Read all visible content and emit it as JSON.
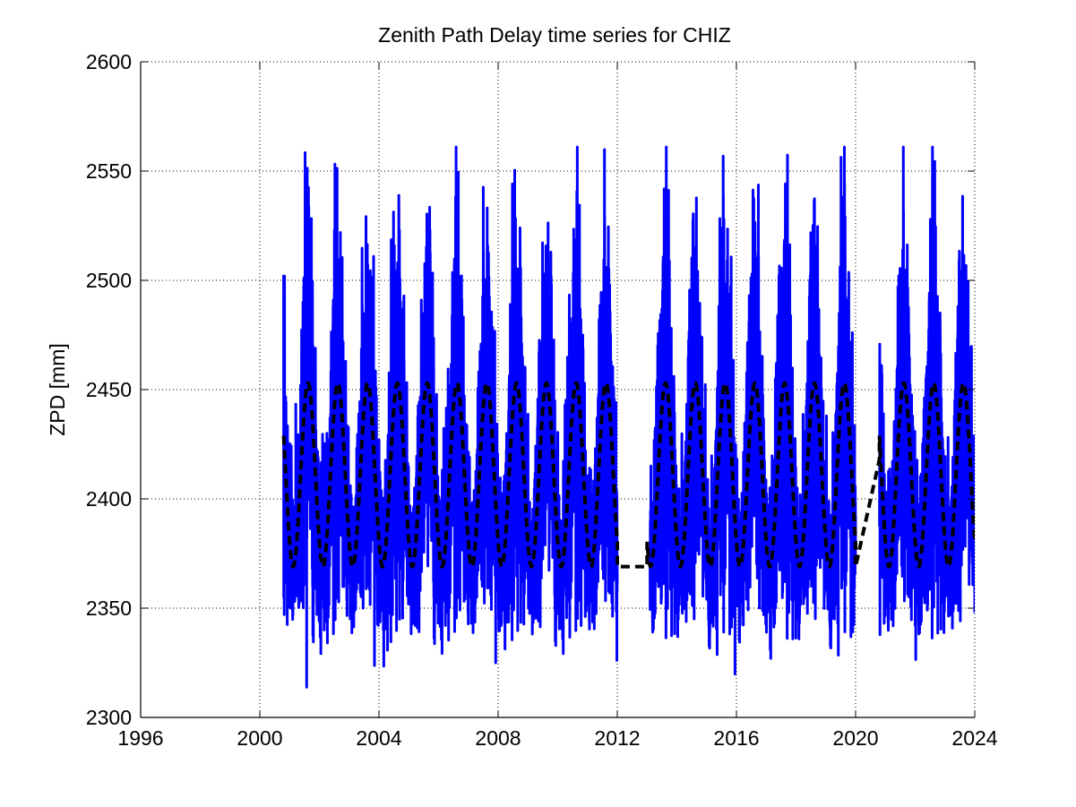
{
  "chart_data": {
    "type": "line",
    "title": "Zenith Path Delay time series for CHIZ",
    "xlabel": "",
    "ylabel": "ZPD [mm]",
    "xlim": [
      1996,
      2024
    ],
    "ylim": [
      2300,
      2600
    ],
    "xticks": [
      1996,
      2000,
      2004,
      2008,
      2012,
      2016,
      2020,
      2024
    ],
    "yticks": [
      2300,
      2350,
      2400,
      2450,
      2500,
      2550,
      2600
    ],
    "grid": true,
    "legend": "none",
    "series": [
      {
        "style": "solid",
        "color": "#0000ff",
        "description_free": true,
        "segments": [
          {
            "start": 2000.8,
            "end": 2012.0
          },
          {
            "start": 2013.1,
            "end": 2020.0
          },
          {
            "start": 2020.8,
            "end": 2024.0
          }
        ],
        "values": {
          "extremes": {
            "min": 2301,
            "max": 2561
          },
          "typical_range": [
            2330,
            2530
          ]
        }
      },
      {
        "style": "dashed",
        "color": "#000000",
        "model": "seasonal",
        "mean": 2411,
        "min": 2369,
        "max": 2453,
        "period_years": 1,
        "peak_phase_year_fraction": 0.62,
        "segments": [
          {
            "start": 2000.8,
            "end": 2012.0
          },
          {
            "start": 2012.0,
            "end": 2013.0,
            "flat_value": 2369
          },
          {
            "start": 2013.0,
            "end": 2020.0
          },
          {
            "start": 2020.0,
            "end": 2020.8,
            "linear_from": 2369,
            "linear_to": 2418
          },
          {
            "start": 2020.8,
            "end": 2024.0
          }
        ]
      }
    ]
  },
  "colors": {
    "data_line": "#0000ff",
    "fit_line": "#000000",
    "grid": "#000000",
    "axis": "#000000"
  }
}
